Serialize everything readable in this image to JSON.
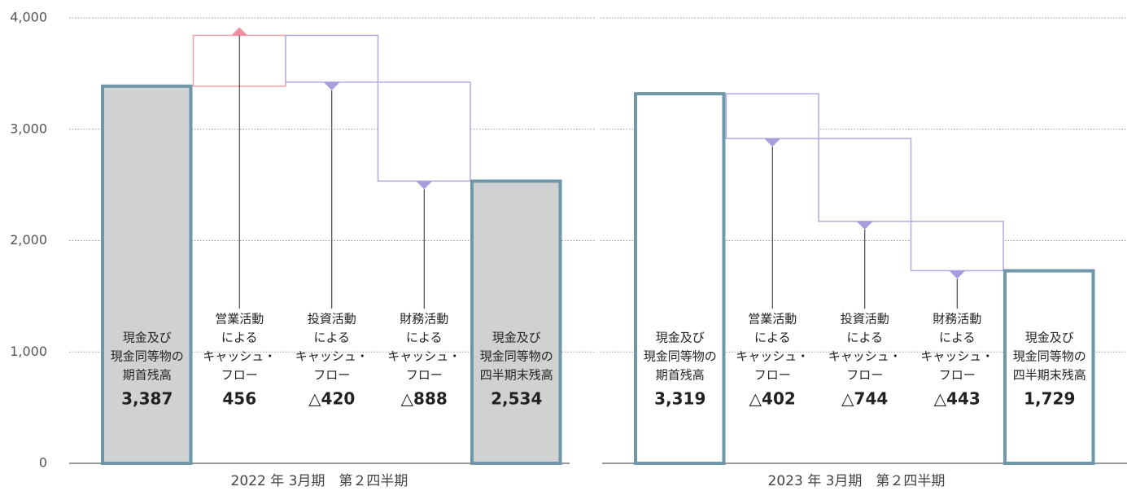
{
  "chart_data": [
    {
      "type": "waterfall",
      "title": "2022 年 3月期　第２四半期",
      "categories": [
        [
          "現金及び",
          "現金同等物の",
          "期首残高"
        ],
        [
          "営業活動",
          "による",
          "キャッシュ・",
          "フロー"
        ],
        [
          "投資活動",
          "による",
          "キャッシュ・",
          "フロー"
        ],
        [
          "財務活動",
          "による",
          "キャッシュ・",
          "フロー"
        ],
        [
          "現金及び",
          "現金同等物の",
          "四半期末残高"
        ]
      ],
      "values": [
        3387,
        456,
        -420,
        -888,
        2534
      ],
      "value_labels": [
        "3,387",
        "456",
        "△420",
        "△888",
        "2,534"
      ],
      "total_color": "#6e97a8",
      "total_fill": "#d0d1d3",
      "increase_color": "#f3a0aa",
      "decrease_color": "#b3a9e0",
      "ylim": [
        0,
        4000
      ],
      "yticks": [
        0,
        {
          "value": 1000,
          "label": "1,000"
        },
        {
          "value": 2000,
          "label": "2,000"
        },
        {
          "value": 3000,
          "label": "3,000"
        },
        {
          "value": 4000,
          "label": "4,000"
        }
      ],
      "grid": true
    },
    {
      "type": "waterfall",
      "title": "2023 年 3月期　第２四半期",
      "categories": [
        [
          "現金及び",
          "現金同等物の",
          "期首残高"
        ],
        [
          "営業活動",
          "による",
          "キャッシュ・",
          "フロー"
        ],
        [
          "投資活動",
          "による",
          "キャッシュ・",
          "フロー"
        ],
        [
          "財務活動",
          "による",
          "キャッシュ・",
          "フロー"
        ],
        [
          "現金及び",
          "現金同等物の",
          "四半期末残高"
        ]
      ],
      "values": [
        3319,
        -402,
        -744,
        -443,
        1729
      ],
      "value_labels": [
        "3,319",
        "△402",
        "△744",
        "△443",
        "1,729"
      ],
      "total_color": "#6e97a8",
      "total_fill": "#ffffff",
      "increase_color": "#f3a0aa",
      "decrease_color": "#b3a9e0",
      "grid": true
    }
  ]
}
